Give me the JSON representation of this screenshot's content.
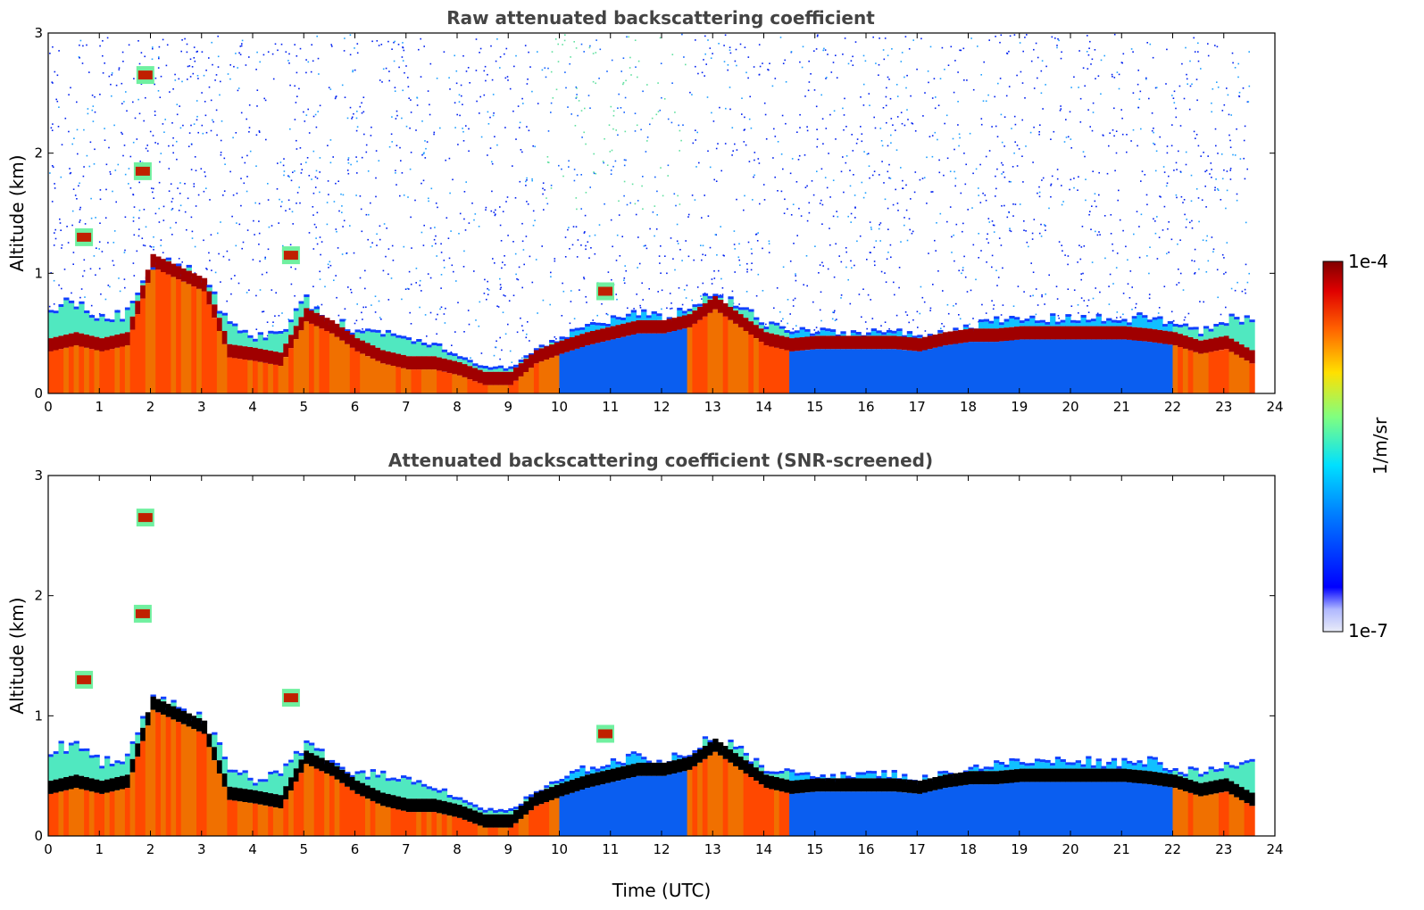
{
  "chart_data": [
    {
      "type": "heatmap",
      "title": "Raw attenuated backscattering coefficient",
      "xlabel": "",
      "ylabel": "Altitude (km)",
      "xlim": [
        0,
        24
      ],
      "ylim": [
        0,
        3
      ],
      "x_ticks": [
        "0",
        "1",
        "2",
        "3",
        "4",
        "5",
        "6",
        "7",
        "8",
        "9",
        "10",
        "11",
        "12",
        "13",
        "14",
        "15",
        "16",
        "17",
        "18",
        "19",
        "20",
        "21",
        "22",
        "23",
        "24"
      ],
      "y_ticks": [
        "0",
        "1",
        "2",
        "3"
      ],
      "grid": false,
      "noise_top_km": 3.0,
      "boundary_layer": {
        "time_utc": [
          0,
          0.5,
          1,
          1.5,
          2,
          2.5,
          3,
          3.5,
          4,
          4.5,
          5,
          5.5,
          6,
          6.5,
          7,
          7.5,
          8,
          8.5,
          9,
          9.5,
          10,
          10.5,
          11,
          11.5,
          12,
          12.5,
          13,
          13.5,
          14,
          14.5,
          15,
          15.5,
          16,
          16.5,
          17,
          17.5,
          18,
          18.5,
          19,
          19.5,
          20,
          20.5,
          21,
          21.5,
          22,
          22.5,
          23,
          23.5
        ],
        "layer_top_km": [
          0.7,
          0.75,
          0.6,
          0.65,
          1.1,
          1.05,
          0.95,
          0.55,
          0.45,
          0.5,
          0.75,
          0.6,
          0.5,
          0.5,
          0.45,
          0.4,
          0.3,
          0.2,
          0.2,
          0.35,
          0.45,
          0.55,
          0.6,
          0.65,
          0.6,
          0.7,
          0.8,
          0.7,
          0.55,
          0.5,
          0.5,
          0.48,
          0.5,
          0.5,
          0.45,
          0.5,
          0.55,
          0.58,
          0.6,
          0.6,
          0.62,
          0.6,
          0.6,
          0.62,
          0.55,
          0.5,
          0.6,
          0.6
        ],
        "peak_km": [
          0.4,
          0.45,
          0.4,
          0.45,
          1.1,
          1.0,
          0.9,
          0.35,
          0.32,
          0.28,
          0.65,
          0.55,
          0.4,
          0.3,
          0.25,
          0.25,
          0.2,
          0.12,
          0.12,
          0.3,
          0.38,
          0.45,
          0.5,
          0.55,
          0.55,
          0.6,
          0.75,
          0.6,
          0.45,
          0.4,
          0.42,
          0.42,
          0.42,
          0.42,
          0.4,
          0.45,
          0.48,
          0.48,
          0.5,
          0.5,
          0.5,
          0.5,
          0.5,
          0.48,
          0.45,
          0.38,
          0.42,
          0.3
        ],
        "surface_regime": [
          "warm",
          "warm",
          "warm",
          "warm",
          "warm",
          "warm",
          "warm",
          "warm",
          "warm",
          "warm",
          "warm",
          "warm",
          "warm",
          "warm",
          "warm",
          "warm",
          "warm",
          "warm",
          "warm",
          "warm",
          "blue",
          "blue",
          "blue",
          "blue",
          "blue",
          "warm",
          "warm",
          "warm",
          "warm",
          "blue",
          "blue",
          "blue",
          "blue",
          "blue",
          "blue",
          "blue",
          "blue",
          "blue",
          "blue",
          "blue",
          "blue",
          "blue",
          "blue",
          "blue",
          "warm",
          "warm",
          "warm",
          "warm"
        ]
      },
      "plumes": [
        {
          "time_utc": 0.7,
          "altitude_km": 1.3
        },
        {
          "time_utc": 1.85,
          "altitude_km": 1.85
        },
        {
          "time_utc": 1.9,
          "altitude_km": 2.65
        },
        {
          "time_utc": 4.75,
          "altitude_km": 1.15
        },
        {
          "time_utc": 10.9,
          "altitude_km": 0.85
        }
      ]
    },
    {
      "type": "heatmap",
      "title": "Attenuated backscattering coefficient (SNR-screened)",
      "xlabel": "Time (UTC)",
      "ylabel": "Altitude (km)",
      "xlim": [
        0,
        24
      ],
      "ylim": [
        0,
        3
      ],
      "x_ticks": [
        "0",
        "1",
        "2",
        "3",
        "4",
        "5",
        "6",
        "7",
        "8",
        "9",
        "10",
        "11",
        "12",
        "13",
        "14",
        "15",
        "16",
        "17",
        "18",
        "19",
        "20",
        "21",
        "22",
        "23",
        "24"
      ],
      "y_ticks": [
        "0",
        "1",
        "2",
        "3"
      ],
      "grid": false,
      "noise_top_km": 0,
      "saturated_color": "#000000"
    }
  ],
  "colorbar": {
    "label": "1/m/sr",
    "max_label": "1e-4",
    "min_label": "1e-7",
    "scale": "log",
    "colormap": "jet",
    "stops": [
      "#e9ecf8",
      "#b0b8ff",
      "#0000ff",
      "#0080ff",
      "#00e0ff",
      "#80ff80",
      "#ffe000",
      "#ff6000",
      "#e00000",
      "#800000"
    ]
  }
}
